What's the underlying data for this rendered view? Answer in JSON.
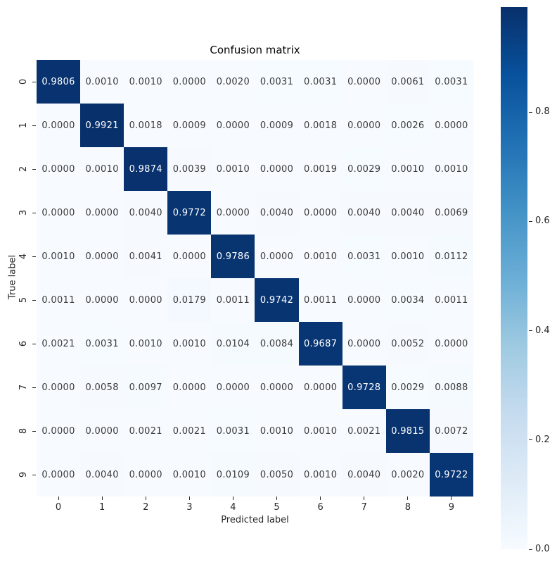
{
  "chart": {
    "title": "Confusion matrix",
    "xlabel": "Predicted label",
    "ylabel": "True label"
  },
  "chart_data": {
    "type": "heatmap",
    "title": "Confusion matrix",
    "xlabel": "Predicted label",
    "ylabel": "True label",
    "x_categories": [
      "0",
      "1",
      "2",
      "3",
      "4",
      "5",
      "6",
      "7",
      "8",
      "9"
    ],
    "y_categories": [
      "0",
      "1",
      "2",
      "3",
      "4",
      "5",
      "6",
      "7",
      "8",
      "9"
    ],
    "matrix": [
      [
        0.9806,
        0.001,
        0.001,
        0.0,
        0.002,
        0.0031,
        0.0031,
        0.0,
        0.0061,
        0.0031
      ],
      [
        0.0,
        0.9921,
        0.0018,
        0.0009,
        0.0,
        0.0009,
        0.0018,
        0.0,
        0.0026,
        0.0
      ],
      [
        0.0,
        0.001,
        0.9874,
        0.0039,
        0.001,
        0.0,
        0.0019,
        0.0029,
        0.001,
        0.001
      ],
      [
        0.0,
        0.0,
        0.004,
        0.9772,
        0.0,
        0.004,
        0.0,
        0.004,
        0.004,
        0.0069
      ],
      [
        0.001,
        0.0,
        0.0041,
        0.0,
        0.9786,
        0.0,
        0.001,
        0.0031,
        0.001,
        0.0112
      ],
      [
        0.0011,
        0.0,
        0.0,
        0.0179,
        0.0011,
        0.9742,
        0.0011,
        0.0,
        0.0034,
        0.0011
      ],
      [
        0.0021,
        0.0031,
        0.001,
        0.001,
        0.0104,
        0.0084,
        0.9687,
        0.0,
        0.0052,
        0.0
      ],
      [
        0.0,
        0.0058,
        0.0097,
        0.0,
        0.0,
        0.0,
        0.0,
        0.9728,
        0.0029,
        0.0088
      ],
      [
        0.0,
        0.0,
        0.0021,
        0.0021,
        0.0031,
        0.001,
        0.001,
        0.0021,
        0.9815,
        0.0072
      ],
      [
        0.0,
        0.004,
        0.0,
        0.001,
        0.0109,
        0.005,
        0.001,
        0.004,
        0.002,
        0.9722
      ]
    ],
    "value_decimals": 4,
    "vmin": 0.0,
    "vmax": 0.9921,
    "grid": false,
    "colormap": {
      "name": "Blues",
      "stops": [
        "#f7fbff",
        "#deebf7",
        "#c6dbef",
        "#9ecae1",
        "#6baed6",
        "#4292c6",
        "#2171b5",
        "#08519c",
        "#08306b"
      ]
    },
    "annotation_colors": {
      "on_dark": "#ffffff",
      "on_light": "#3b3b3b"
    },
    "colorbar": {
      "position": "right",
      "tick_values": [
        0.8,
        0.6,
        0.4,
        0.2,
        0.0
      ],
      "tick_labels": [
        "0.8",
        "0.6",
        "0.4",
        "0.2",
        "0.0"
      ]
    }
  }
}
